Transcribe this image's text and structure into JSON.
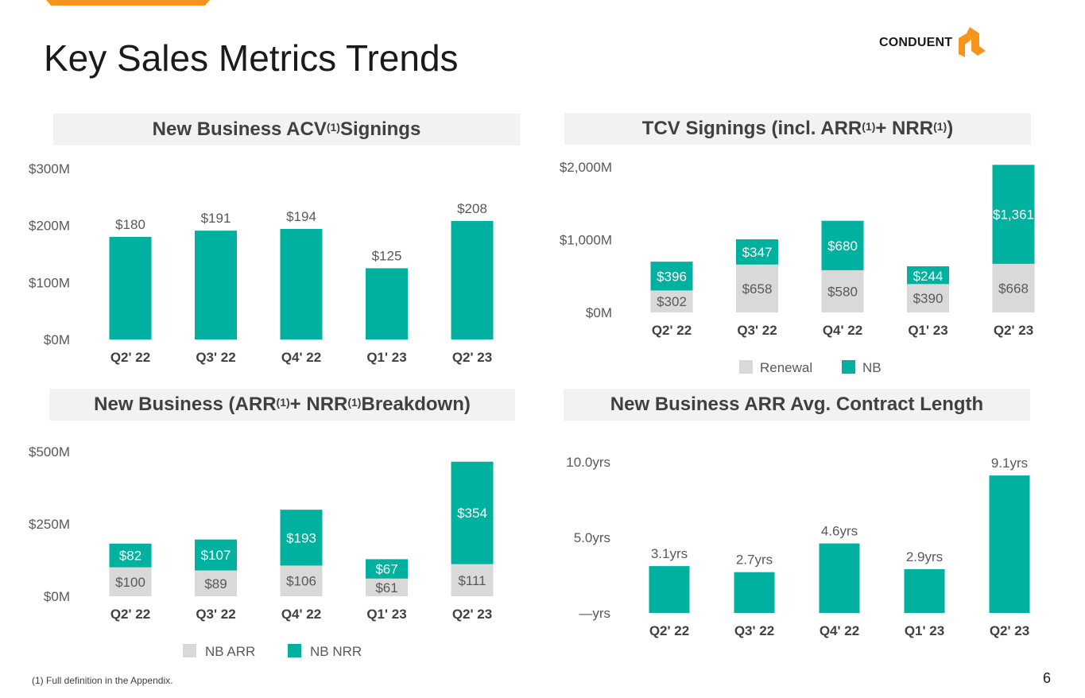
{
  "page": {
    "title": "Key Sales Metrics Trends",
    "logo_text": "CONDUENT",
    "footnote": "(1) Full definition in the Appendix.",
    "page_number": "6"
  },
  "colors": {
    "teal": "#00b19f",
    "gray": "#d9d9d9",
    "orange": "#f7941d",
    "dark": "#404040",
    "label": "#595959"
  },
  "chart_data": [
    {
      "id": "acv",
      "type": "bar",
      "title_main": "New Business ACV",
      "title_sup": "(1)",
      "title_tail": " Signings",
      "categories": [
        "Q2' 22",
        "Q3' 22",
        "Q4' 22",
        "Q1' 23",
        "Q2' 23"
      ],
      "series": [
        {
          "name": "New Business ACV",
          "values": [
            180,
            191,
            194,
            125,
            208
          ],
          "labels": [
            "$180",
            "$191",
            "$194",
            "$125",
            "$208"
          ]
        }
      ],
      "yticks": [
        0,
        100,
        200,
        300
      ],
      "ytick_labels": [
        "$0M",
        "$100M",
        "$200M",
        "$300M"
      ],
      "ylim": [
        0,
        300
      ]
    },
    {
      "id": "tcv",
      "type": "bar",
      "stacked": true,
      "title_main": "TCV Signings (incl. ARR",
      "title_sup": "(1)",
      "title_mid": " + NRR",
      "title_sup2": "(1)",
      "title_tail": ")",
      "categories": [
        "Q2' 22",
        "Q3' 22",
        "Q4' 22",
        "Q1' 23",
        "Q2' 23"
      ],
      "series": [
        {
          "name": "Renewal",
          "values": [
            302,
            658,
            580,
            390,
            668
          ],
          "labels": [
            "$302",
            "$658",
            "$580",
            "$390",
            "$668"
          ]
        },
        {
          "name": "NB",
          "values": [
            396,
            347,
            680,
            244,
            1361
          ],
          "labels": [
            "$396",
            "$347",
            "$680",
            "$244",
            "$1,361"
          ]
        }
      ],
      "yticks": [
        0,
        1000,
        2000
      ],
      "ytick_labels": [
        "$0M",
        "$1,000M",
        "$2,000M"
      ],
      "ylim": [
        0,
        2000
      ],
      "legend": [
        "Renewal",
        "NB"
      ]
    },
    {
      "id": "arrnrr",
      "type": "bar",
      "stacked": true,
      "title_main": "New Business (ARR",
      "title_sup": "(1)",
      "title_mid": " + NRR",
      "title_sup2": "(1)",
      "title_tail": " Breakdown)",
      "categories": [
        "Q2' 22",
        "Q3' 22",
        "Q4' 22",
        "Q1' 23",
        "Q2' 23"
      ],
      "series": [
        {
          "name": "NB ARR",
          "values": [
            100,
            89,
            106,
            61,
            111
          ],
          "labels": [
            "$100",
            "$89",
            "$106",
            "$61",
            "$111"
          ]
        },
        {
          "name": "NB NRR",
          "values": [
            82,
            107,
            193,
            67,
            354
          ],
          "labels": [
            "$82",
            "$107",
            "$193",
            "$67",
            "$354"
          ]
        }
      ],
      "yticks": [
        0,
        250,
        500
      ],
      "ytick_labels": [
        "$0M",
        "$250M",
        "$500M"
      ],
      "ylim": [
        0,
        500
      ],
      "legend": [
        "NB ARR",
        "NB NRR"
      ]
    },
    {
      "id": "length",
      "type": "bar",
      "title_main": "New Business ARR Avg. Contract Length",
      "categories": [
        "Q2' 22",
        "Q3' 22",
        "Q4' 22",
        "Q1' 23",
        "Q2' 23"
      ],
      "series": [
        {
          "name": "Avg. Contract Length",
          "values": [
            3.1,
            2.7,
            4.6,
            2.9,
            9.1
          ],
          "labels": [
            "3.1yrs",
            "2.7yrs",
            "4.6yrs",
            "2.9yrs",
            "9.1yrs"
          ]
        }
      ],
      "yticks": [
        0,
        5,
        10
      ],
      "ytick_labels": [
        "—yrs",
        "5.0yrs",
        "10.0yrs"
      ],
      "ylim": [
        0,
        10
      ]
    }
  ]
}
